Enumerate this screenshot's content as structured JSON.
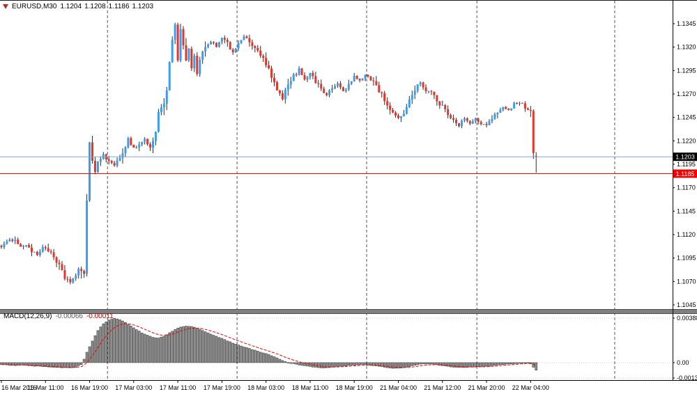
{
  "quote": {
    "symbol": "EURUSD,M30",
    "open": "1.1204",
    "high": "1.1208",
    "low": "1.1186",
    "close": "1.1203"
  },
  "colors": {
    "background": "#ffffff",
    "bull": "#3a9df0",
    "bear": "#e5352b",
    "wick": "#2b2b2b",
    "bid_line": "#7da7cf",
    "level_line": "#ff0000",
    "bid_tag_bg": "#000000",
    "level_tag_bg": "#f50000",
    "tag_text": "#ffffff",
    "separator": "#555555",
    "splitter": "#808080",
    "splitter_edge": "#4d4d4d",
    "macd_hist_fill": "#8f8f8f",
    "macd_hist_stroke": "#404040",
    "macd_signal": "#f00000",
    "macd_level_line": "#cfcfcf",
    "axis_text": "#000000",
    "axis_line": "#000000"
  },
  "chart_data": [
    {
      "type": "candlestick",
      "title": "EURUSD,M30",
      "y_axis": {
        "ticks": [
          "1.1345",
          "1.1320",
          "1.1295",
          "1.1270",
          "1.1245",
          "1.1220",
          "1.1195",
          "1.1170",
          "1.1145",
          "1.1120",
          "1.1095",
          "1.1070",
          "1.1045"
        ],
        "min": 1.1045,
        "max": 1.1345
      },
      "x_axis": {
        "labels": [
          "16 Mar 2016",
          "16 Mar 11:00",
          "16 Mar 19:00",
          "17 Mar 03:00",
          "17 Mar 11:00",
          "17 Mar 19:00",
          "18 Mar 03:00",
          "18 Mar 11:00",
          "18 Mar 19:00",
          "21 Mar 04:00",
          "21 Mar 12:00",
          "21 Mar 20:00",
          "22 Mar 04:00"
        ],
        "first_label_idx": 0,
        "label_step_bars": 16,
        "total_slots": 244,
        "bar_count": 195
      },
      "day_separators_idx": [
        39,
        86,
        133,
        173,
        223
      ],
      "lines": [
        {
          "price": 1.1203,
          "label": "1.1203",
          "kind": "bid"
        },
        {
          "price": 1.1185,
          "label": "1.1185",
          "kind": "level"
        }
      ],
      "last_bar": {
        "open": 1.1204,
        "high": 1.1208,
        "low": 1.1186,
        "close": 1.1203
      },
      "price_waypoints": [
        [
          0,
          1.1108
        ],
        [
          3,
          1.1113
        ],
        [
          5,
          1.1116
        ],
        [
          7,
          1.1106
        ],
        [
          9,
          1.111
        ],
        [
          11,
          1.1102
        ],
        [
          13,
          1.1098
        ],
        [
          15,
          1.1107
        ],
        [
          17,
          1.1104
        ],
        [
          19,
          1.1094
        ],
        [
          21,
          1.1086
        ],
        [
          23,
          1.1074
        ],
        [
          25,
          1.107
        ],
        [
          27,
          1.1076
        ],
        [
          28,
          1.1082
        ],
        [
          29,
          1.1076
        ],
        [
          30,
          1.108
        ],
        [
          31,
          1.116
        ],
        [
          32,
          1.1218
        ],
        [
          33,
          1.12
        ],
        [
          34,
          1.1186
        ],
        [
          35,
          1.1196
        ],
        [
          37,
          1.1206
        ],
        [
          39,
          1.1198
        ],
        [
          41,
          1.1192
        ],
        [
          43,
          1.1204
        ],
        [
          45,
          1.1214
        ],
        [
          46,
          1.1222
        ],
        [
          48,
          1.1212
        ],
        [
          50,
          1.1216
        ],
        [
          52,
          1.1222
        ],
        [
          54,
          1.1212
        ],
        [
          56,
          1.123
        ],
        [
          57,
          1.1248
        ],
        [
          58,
          1.1256
        ],
        [
          59,
          1.1263
        ],
        [
          60,
          1.1276
        ],
        [
          61,
          1.1302
        ],
        [
          62,
          1.133
        ],
        [
          63,
          1.1341
        ],
        [
          64,
          1.1305
        ],
        [
          65,
          1.1338
        ],
        [
          66,
          1.1322
        ],
        [
          67,
          1.1302
        ],
        [
          68,
          1.1318
        ],
        [
          69,
          1.1296
        ],
        [
          70,
          1.1312
        ],
        [
          71,
          1.129
        ],
        [
          72,
          1.1306
        ],
        [
          74,
          1.1318
        ],
        [
          76,
          1.1327
        ],
        [
          78,
          1.1321
        ],
        [
          80,
          1.1331
        ],
        [
          82,
          1.1323
        ],
        [
          84,
          1.1313
        ],
        [
          86,
          1.1326
        ],
        [
          88,
          1.1331
        ],
        [
          90,
          1.1325
        ],
        [
          92,
          1.1318
        ],
        [
          94,
          1.1312
        ],
        [
          96,
          1.1301
        ],
        [
          98,
          1.1288
        ],
        [
          100,
          1.1273
        ],
        [
          102,
          1.1266
        ],
        [
          104,
          1.1279
        ],
        [
          106,
          1.1289
        ],
        [
          108,
          1.1296
        ],
        [
          110,
          1.1286
        ],
        [
          112,
          1.1293
        ],
        [
          114,
          1.1283
        ],
        [
          116,
          1.1276
        ],
        [
          118,
          1.1269
        ],
        [
          120,
          1.1276
        ],
        [
          122,
          1.1281
        ],
        [
          124,
          1.1273
        ],
        [
          126,
          1.1279
        ],
        [
          128,
          1.1289
        ],
        [
          130,
          1.1283
        ],
        [
          132,
          1.1291
        ],
        [
          134,
          1.1286
        ],
        [
          136,
          1.1279
        ],
        [
          138,
          1.1269
        ],
        [
          140,
          1.1259
        ],
        [
          142,
          1.1249
        ],
        [
          144,
          1.1243
        ],
        [
          146,
          1.1251
        ],
        [
          148,
          1.1263
        ],
        [
          150,
          1.1276
        ],
        [
          152,
          1.1283
        ],
        [
          154,
          1.1273
        ],
        [
          156,
          1.1272
        ],
        [
          158,
          1.1263
        ],
        [
          160,
          1.1256
        ],
        [
          162,
          1.1249
        ],
        [
          164,
          1.1243
        ],
        [
          166,
          1.1237
        ],
        [
          168,
          1.1244
        ],
        [
          170,
          1.1238
        ],
        [
          172,
          1.1243
        ],
        [
          174,
          1.1239
        ],
        [
          176,
          1.1236
        ],
        [
          178,
          1.1243
        ],
        [
          180,
          1.1251
        ],
        [
          182,
          1.1257
        ],
        [
          184,
          1.1253
        ],
        [
          186,
          1.1259
        ],
        [
          188,
          1.1261
        ],
        [
          190,
          1.1256
        ],
        [
          191,
          1.1253
        ],
        [
          192,
          1.1252
        ],
        [
          193,
          1.1207
        ],
        [
          194,
          1.1203
        ]
      ]
    },
    {
      "type": "macd",
      "label": "MACD(12,26,9)",
      "value_main": "-0.00066",
      "value_signal": "-0.00011",
      "levels": [
        "0.00388",
        "0.00",
        "-0.00134"
      ],
      "range": {
        "min": -0.00134,
        "max": 0.00388
      },
      "signal_ema_period": 9,
      "macd_waypoints": [
        [
          0,
          -0.00015
        ],
        [
          4,
          -0.00025
        ],
        [
          8,
          -0.0002
        ],
        [
          12,
          -0.0003
        ],
        [
          16,
          -0.00035
        ],
        [
          20,
          -0.00042
        ],
        [
          24,
          -0.00046
        ],
        [
          27,
          -0.0004
        ],
        [
          29,
          -0.00015
        ],
        [
          30,
          0.0003
        ],
        [
          31,
          0.0009
        ],
        [
          33,
          0.0019
        ],
        [
          35,
          0.0028
        ],
        [
          37,
          0.0034
        ],
        [
          39,
          0.0037
        ],
        [
          41,
          0.00385
        ],
        [
          43,
          0.00375
        ],
        [
          45,
          0.0035
        ],
        [
          47,
          0.0032
        ],
        [
          49,
          0.0029
        ],
        [
          51,
          0.0026
        ],
        [
          53,
          0.0024
        ],
        [
          55,
          0.0022
        ],
        [
          57,
          0.00215
        ],
        [
          59,
          0.0023
        ],
        [
          61,
          0.0026
        ],
        [
          63,
          0.0029
        ],
        [
          65,
          0.0031
        ],
        [
          67,
          0.0032
        ],
        [
          69,
          0.00315
        ],
        [
          71,
          0.003
        ],
        [
          73,
          0.0028
        ],
        [
          75,
          0.0026
        ],
        [
          77,
          0.0024
        ],
        [
          79,
          0.0022
        ],
        [
          81,
          0.002
        ],
        [
          83,
          0.0018
        ],
        [
          85,
          0.0016
        ],
        [
          87,
          0.00145
        ],
        [
          89,
          0.0013
        ],
        [
          91,
          0.00115
        ],
        [
          93,
          0.001
        ],
        [
          95,
          0.00085
        ],
        [
          97,
          0.0007
        ],
        [
          99,
          0.0005
        ],
        [
          101,
          0.0003
        ],
        [
          103,
          0.0001
        ],
        [
          105,
          -5e-05
        ],
        [
          107,
          -0.00015
        ],
        [
          109,
          -0.00025
        ],
        [
          111,
          -0.0003
        ],
        [
          113,
          -0.00038
        ],
        [
          115,
          -0.00044
        ],
        [
          117,
          -0.00046
        ],
        [
          119,
          -0.00042
        ],
        [
          121,
          -0.00036
        ],
        [
          123,
          -0.0003
        ],
        [
          125,
          -0.00028
        ],
        [
          127,
          -0.00022
        ],
        [
          129,
          -0.00018
        ],
        [
          131,
          -0.00015
        ],
        [
          133,
          -0.0002
        ],
        [
          135,
          -0.00025
        ],
        [
          137,
          -0.00032
        ],
        [
          139,
          -0.0004
        ],
        [
          141,
          -0.00046
        ],
        [
          143,
          -0.0005
        ],
        [
          145,
          -0.00046
        ],
        [
          147,
          -0.00038
        ],
        [
          149,
          -0.00028
        ],
        [
          151,
          -0.00018
        ],
        [
          153,
          -0.00012
        ],
        [
          155,
          -0.0001
        ],
        [
          157,
          -0.00015
        ],
        [
          159,
          -0.00022
        ],
        [
          161,
          -0.0003
        ],
        [
          163,
          -0.00036
        ],
        [
          165,
          -0.0004
        ],
        [
          167,
          -0.00042
        ],
        [
          169,
          -0.0004
        ],
        [
          171,
          -0.00038
        ],
        [
          173,
          -0.00036
        ],
        [
          175,
          -0.00035
        ],
        [
          177,
          -0.0003
        ],
        [
          179,
          -0.00024
        ],
        [
          181,
          -0.00018
        ],
        [
          183,
          -0.00014
        ],
        [
          185,
          -0.0001
        ],
        [
          187,
          -6e-05
        ],
        [
          189,
          -2e-05
        ],
        [
          191,
          0.0
        ],
        [
          192,
          -0.0001
        ],
        [
          193,
          -0.0004
        ],
        [
          194,
          -0.00066
        ]
      ]
    }
  ]
}
